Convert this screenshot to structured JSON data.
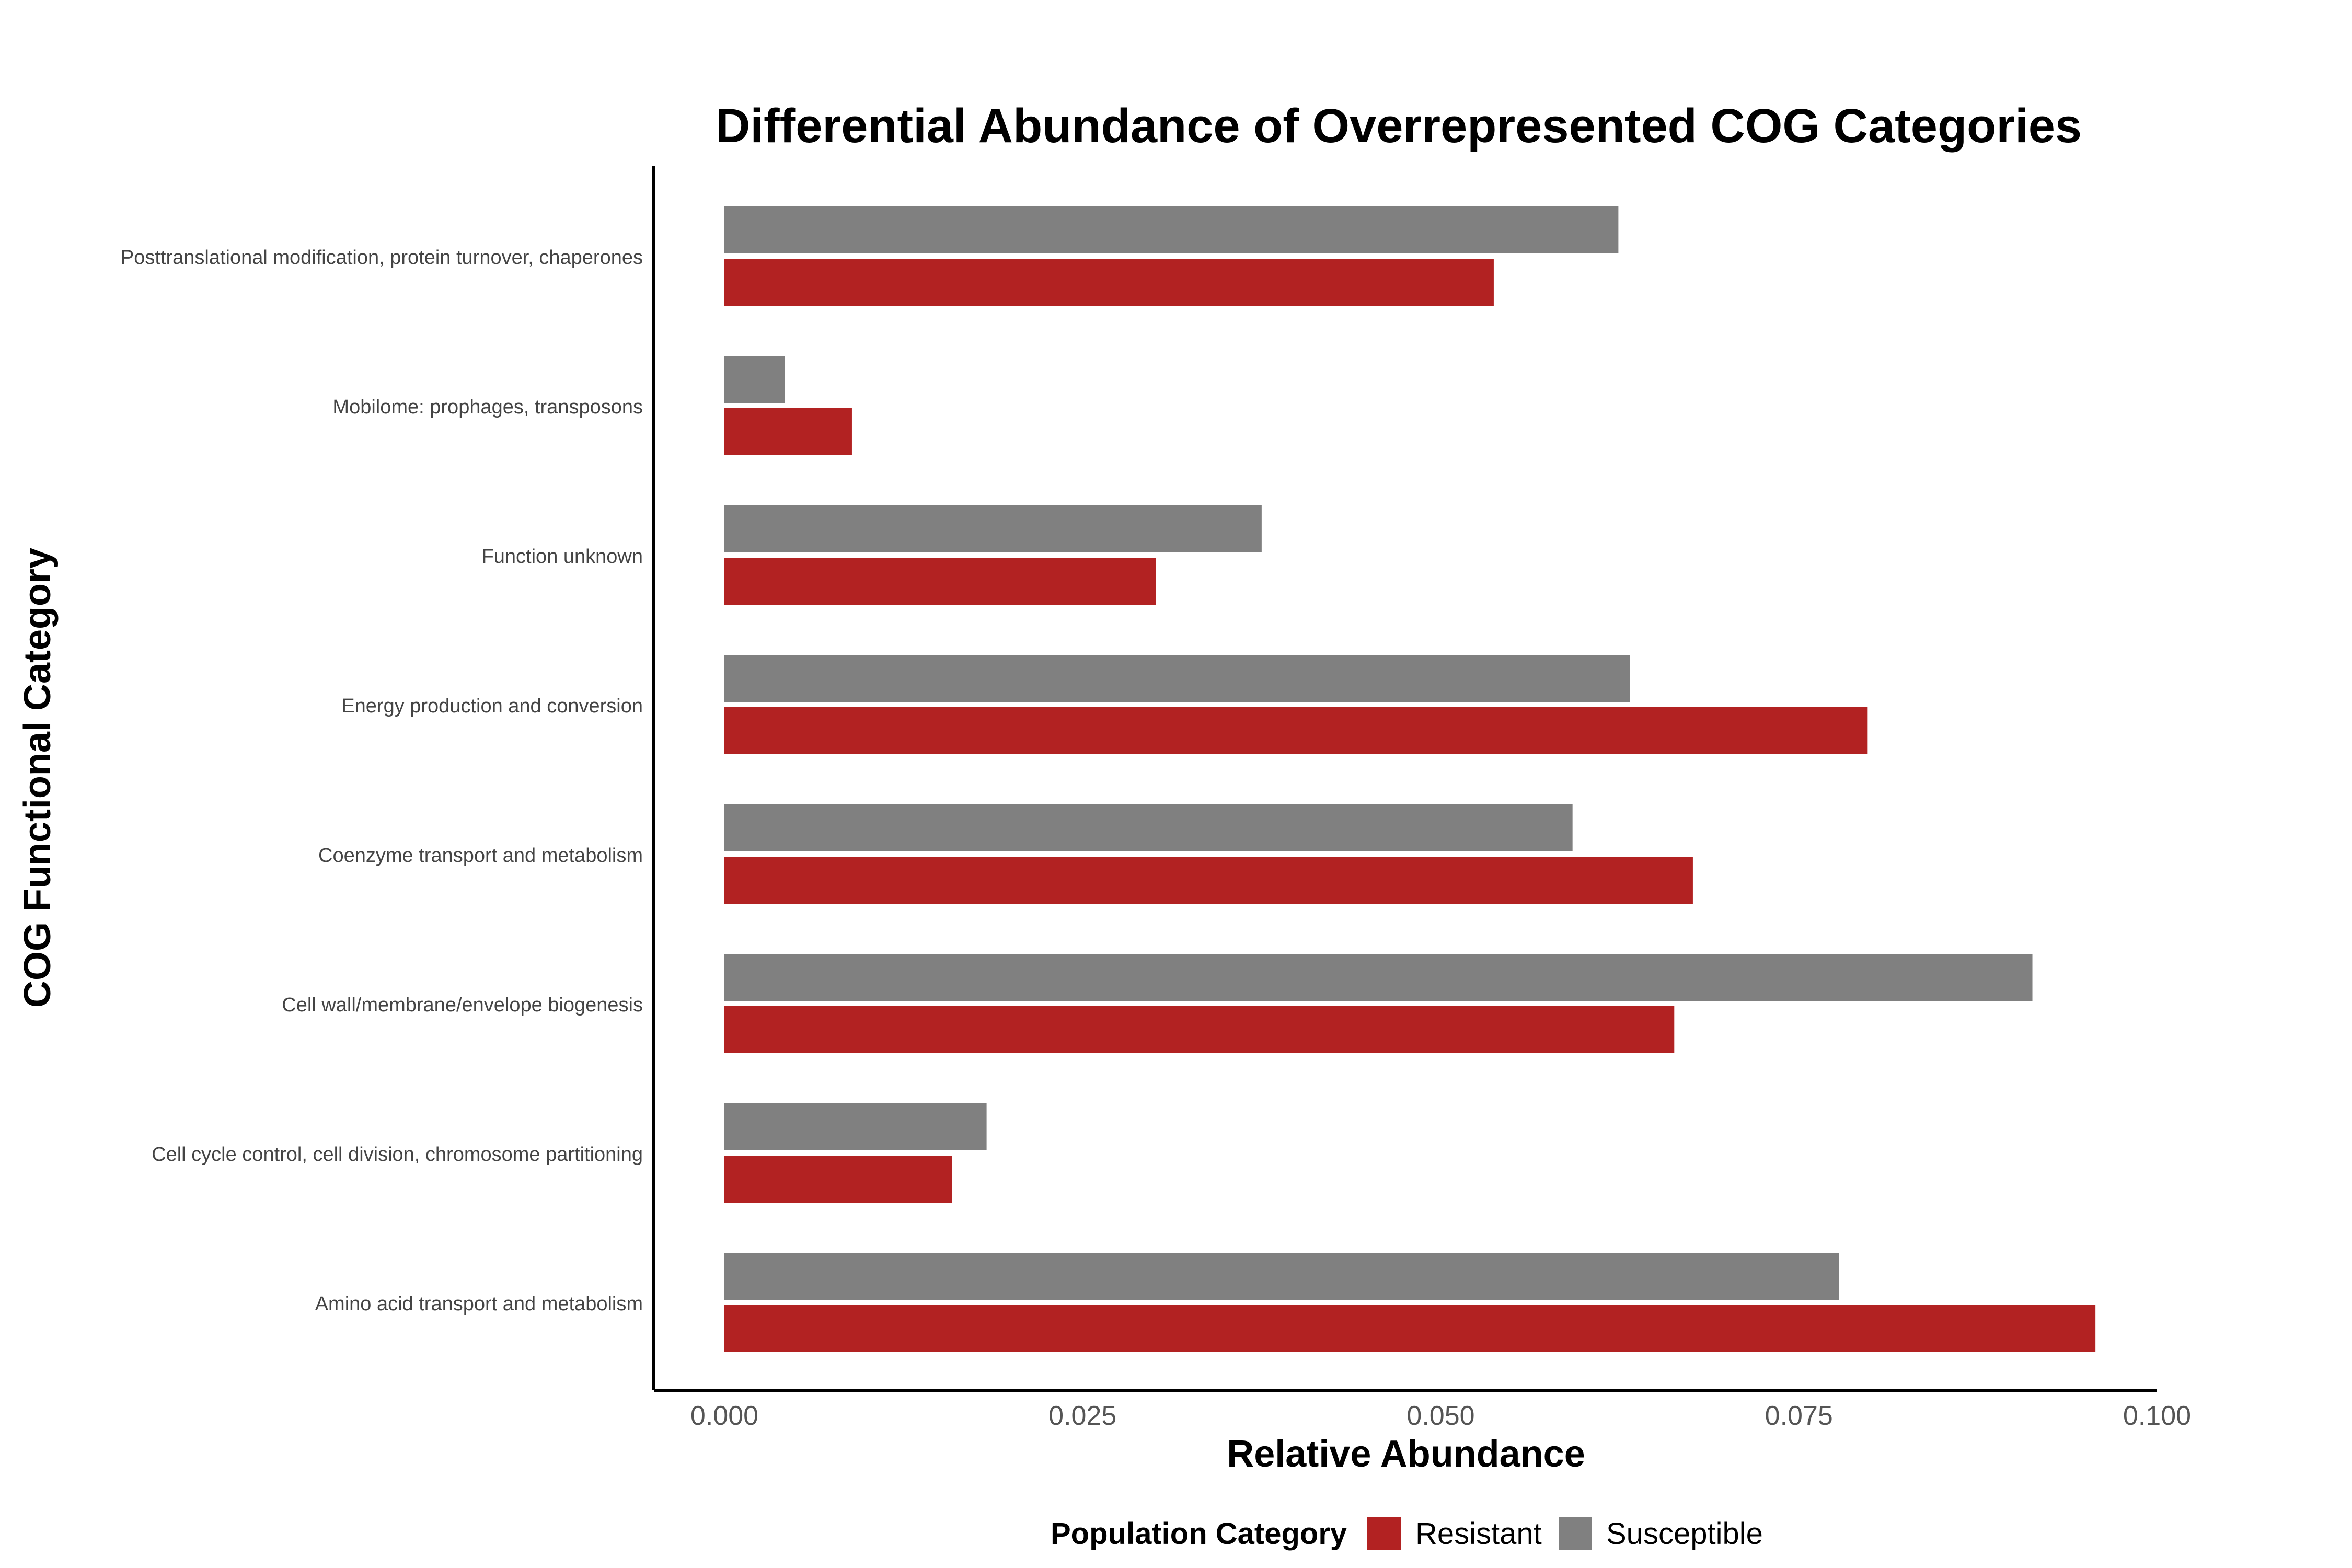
{
  "chart_data": {
    "type": "bar",
    "orientation": "horizontal",
    "title": "Differential Abundance of Overrepresented COG Categories",
    "xlabel": "Relative Abundance",
    "ylabel": "COG Functional Category",
    "xlim": [
      0,
      0.1
    ],
    "x_ticks": [
      "0.000",
      "0.025",
      "0.050",
      "0.075",
      "0.100"
    ],
    "x_tick_values": [
      0,
      0.025,
      0.05,
      0.075,
      0.1
    ],
    "grid": false,
    "legend_title": "Population Category",
    "legend_position": "bottom",
    "categories": [
      "Posttranslational modification, protein turnover, chaperones",
      "Mobilome: prophages, transposons",
      "Function unknown",
      "Energy production and conversion",
      "Coenzyme transport and metabolism",
      "Cell wall/membrane/envelope biogenesis",
      "Cell cycle control, cell division, chromosome partitioning",
      "Amino acid transport and metabolism"
    ],
    "series": [
      {
        "name": "Resistant",
        "color": "#B22222",
        "values": [
          0.0537,
          0.0089,
          0.0301,
          0.0798,
          0.0676,
          0.0663,
          0.0159,
          0.0957
        ]
      },
      {
        "name": "Susceptible",
        "color": "#808080",
        "values": [
          0.0624,
          0.0042,
          0.0375,
          0.0632,
          0.0592,
          0.0913,
          0.0183,
          0.0778
        ]
      }
    ]
  }
}
